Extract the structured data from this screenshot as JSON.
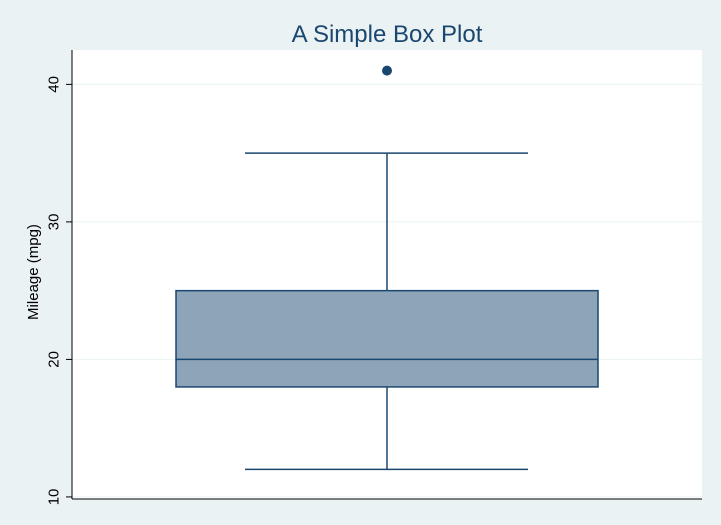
{
  "chart_data": {
    "type": "box",
    "title": "A Simple Box Plot",
    "ylabel": "Mileage (mpg)",
    "xlabel": "",
    "yticks": [
      10,
      20,
      30,
      40
    ],
    "ylim": [
      9.85,
      42.5
    ],
    "grid": true,
    "box": {
      "whisker_low": 12,
      "q1": 18,
      "median": 20,
      "q3": 25,
      "whisker_high": 35,
      "outliers": [
        41
      ]
    },
    "colors": {
      "background": "#eaf2f3",
      "plot_area": "#ffffff",
      "box_fill": "#8ea4b8",
      "box_line": "#1a476f",
      "grid": "#eaf2f3",
      "axis": "#000000",
      "title": "#1a476f"
    }
  }
}
